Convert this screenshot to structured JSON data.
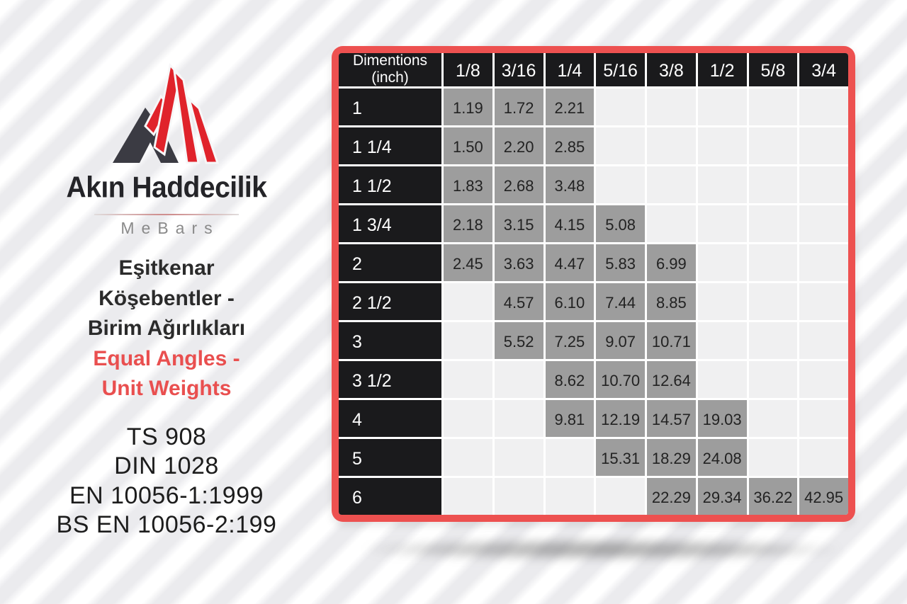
{
  "brand": {
    "company": "Akın Haddecilik",
    "tagline": "MeBars"
  },
  "headline": {
    "turkish_lines": [
      "Eşitkenar",
      "Köşebentler -",
      "Birim Ağırlıkları"
    ],
    "english_lines": [
      "Equal Angles -",
      "Unit Weights"
    ]
  },
  "standards_lines": [
    "TS 908",
    "DIN 1028",
    "EN 10056-1:1999",
    "BS EN 10056-2:199"
  ],
  "colors": {
    "card_border_red": "#ed5150",
    "logo_red": "#e0232b",
    "logo_dark": "#3b3b43",
    "cell_dark": "#1a1a1c",
    "cell_filled_gray": "#9d9d9d",
    "cell_empty": "#f0f0f1",
    "headline_red": "#e94f4f"
  },
  "table": {
    "corner_header_lines": [
      "Dimentions",
      "(inch)"
    ],
    "columns": [
      "1/8",
      "3/16",
      "1/4",
      "5/16",
      "3/8",
      "1/2",
      "5/8",
      "3/4"
    ],
    "rows": [
      {
        "label": "1",
        "values": [
          "1.19",
          "1.72",
          "2.21",
          null,
          null,
          null,
          null,
          null
        ]
      },
      {
        "label": "1 1/4",
        "values": [
          "1.50",
          "2.20",
          "2.85",
          null,
          null,
          null,
          null,
          null
        ]
      },
      {
        "label": "1 1/2",
        "values": [
          "1.83",
          "2.68",
          "3.48",
          null,
          null,
          null,
          null,
          null
        ]
      },
      {
        "label": "1 3/4",
        "values": [
          "2.18",
          "3.15",
          "4.15",
          "5.08",
          null,
          null,
          null,
          null
        ]
      },
      {
        "label": "2",
        "values": [
          "2.45",
          "3.63",
          "4.47",
          "5.83",
          "6.99",
          null,
          null,
          null
        ]
      },
      {
        "label": "2 1/2",
        "values": [
          null,
          "4.57",
          "6.10",
          "7.44",
          "8.85",
          null,
          null,
          null
        ]
      },
      {
        "label": "3",
        "values": [
          null,
          "5.52",
          "7.25",
          "9.07",
          "10.71",
          null,
          null,
          null
        ]
      },
      {
        "label": "3 1/2",
        "values": [
          null,
          null,
          "8.62",
          "10.70",
          "12.64",
          null,
          null,
          null
        ]
      },
      {
        "label": "4",
        "values": [
          null,
          null,
          "9.81",
          "12.19",
          "14.57",
          "19.03",
          null,
          null
        ]
      },
      {
        "label": "5",
        "values": [
          null,
          null,
          null,
          "15.31",
          "18.29",
          "24.08",
          null,
          null
        ]
      },
      {
        "label": "6",
        "values": [
          null,
          null,
          null,
          null,
          "22.29",
          "29.34",
          "36.22",
          "42.95"
        ]
      }
    ]
  },
  "chart_data": {
    "type": "table",
    "title": "Equal Angles - Unit Weights",
    "title_turkish": "Eşitkenar Köşebentler - Birim Ağırlıkları",
    "row_header": "Dimentions (inch)",
    "columns": [
      "1/8",
      "3/16",
      "1/4",
      "5/16",
      "3/8",
      "1/2",
      "5/8",
      "3/4"
    ],
    "rows": [
      {
        "dimension": "1",
        "weights": [
          1.19,
          1.72,
          2.21,
          null,
          null,
          null,
          null,
          null
        ]
      },
      {
        "dimension": "1 1/4",
        "weights": [
          1.5,
          2.2,
          2.85,
          null,
          null,
          null,
          null,
          null
        ]
      },
      {
        "dimension": "1 1/2",
        "weights": [
          1.83,
          2.68,
          3.48,
          null,
          null,
          null,
          null,
          null
        ]
      },
      {
        "dimension": "1 3/4",
        "weights": [
          2.18,
          3.15,
          4.15,
          5.08,
          null,
          null,
          null,
          null
        ]
      },
      {
        "dimension": "2",
        "weights": [
          2.45,
          3.63,
          4.47,
          5.83,
          6.99,
          null,
          null,
          null
        ]
      },
      {
        "dimension": "2 1/2",
        "weights": [
          null,
          4.57,
          6.1,
          7.44,
          8.85,
          null,
          null,
          null
        ]
      },
      {
        "dimension": "3",
        "weights": [
          null,
          5.52,
          7.25,
          9.07,
          10.71,
          null,
          null,
          null
        ]
      },
      {
        "dimension": "3 1/2",
        "weights": [
          null,
          null,
          8.62,
          10.7,
          12.64,
          null,
          null,
          null
        ]
      },
      {
        "dimension": "4",
        "weights": [
          null,
          null,
          9.81,
          12.19,
          14.57,
          19.03,
          null,
          null
        ]
      },
      {
        "dimension": "5",
        "weights": [
          null,
          null,
          null,
          15.31,
          18.29,
          24.08,
          null,
          null
        ]
      },
      {
        "dimension": "6",
        "weights": [
          null,
          null,
          null,
          null,
          22.29,
          29.34,
          36.22,
          42.95
        ]
      }
    ],
    "standards": [
      "TS 908",
      "DIN 1028",
      "EN 10056-1:1999",
      "BS EN 10056-2:199"
    ]
  }
}
